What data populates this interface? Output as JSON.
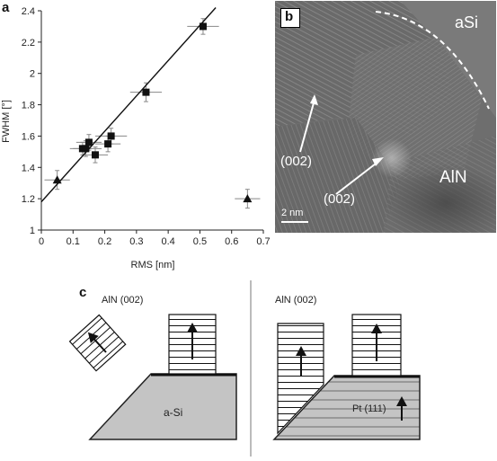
{
  "panel_a": {
    "letter": "a",
    "chart_data": {
      "type": "scatter",
      "xlabel": "RMS [nm]",
      "ylabel": "FWHM [°]",
      "xlim": [
        0,
        0.7
      ],
      "ylim": [
        1,
        2.4
      ],
      "x_ticks": [
        "0",
        "0.1",
        "0.2",
        "0.3",
        "0.4",
        "0.5",
        "0.6",
        "0.7"
      ],
      "y_ticks": [
        "1",
        "1.2",
        "1.4",
        "1.6",
        "1.8",
        "2",
        "2.2",
        "2.4"
      ],
      "x_tick_values": [
        0,
        0.1,
        0.2,
        0.3,
        0.4,
        0.5,
        0.6,
        0.7
      ],
      "y_tick_values": [
        1,
        1.2,
        1.4,
        1.6,
        1.8,
        2.0,
        2.2,
        2.4
      ],
      "grid": false,
      "series": [
        {
          "marker": "square",
          "points": [
            {
              "x": 0.13,
              "y": 1.52,
              "xerr": 0.03,
              "yerr": 0.04
            },
            {
              "x": 0.14,
              "y": 1.52,
              "xerr": 0.05,
              "yerr": 0.05
            },
            {
              "x": 0.15,
              "y": 1.56,
              "xerr": 0.04,
              "yerr": 0.05
            },
            {
              "x": 0.17,
              "y": 1.48,
              "xerr": 0.04,
              "yerr": 0.05
            },
            {
              "x": 0.21,
              "y": 1.55,
              "xerr": 0.04,
              "yerr": 0.05
            },
            {
              "x": 0.22,
              "y": 1.6,
              "xerr": 0.05,
              "yerr": 0.05
            },
            {
              "x": 0.33,
              "y": 1.88,
              "xerr": 0.05,
              "yerr": 0.06
            },
            {
              "x": 0.51,
              "y": 2.3,
              "xerr": 0.05,
              "yerr": 0.05
            }
          ]
        },
        {
          "marker": "triangle",
          "points": [
            {
              "x": 0.05,
              "y": 1.32,
              "xerr": 0.04,
              "yerr": 0.06
            },
            {
              "x": 0.65,
              "y": 1.2,
              "xerr": 0.04,
              "yerr": 0.06
            }
          ]
        }
      ],
      "fit_line": {
        "x": [
          0,
          0.55
        ],
        "y": [
          1.18,
          2.42
        ]
      }
    }
  },
  "panel_b": {
    "letter": "b",
    "label_asi": "aSi",
    "label_aln": "AlN",
    "annotation_1": "(002)",
    "annotation_2": "(002)",
    "scale_bar": "2 nm"
  },
  "panel_c": {
    "letter": "c",
    "left_title": "AlN (002)",
    "right_title": "AlN (002)",
    "substrate_left": "a-Si",
    "substrate_right": "Pt (111)"
  },
  "colors": {
    "axis": "#222222",
    "marker": "#111111",
    "errorbar": "#888888",
    "substrate_fill": "#c4c4c4",
    "tem_background": "#6f6f6f",
    "tem_text": "#ffffff"
  }
}
